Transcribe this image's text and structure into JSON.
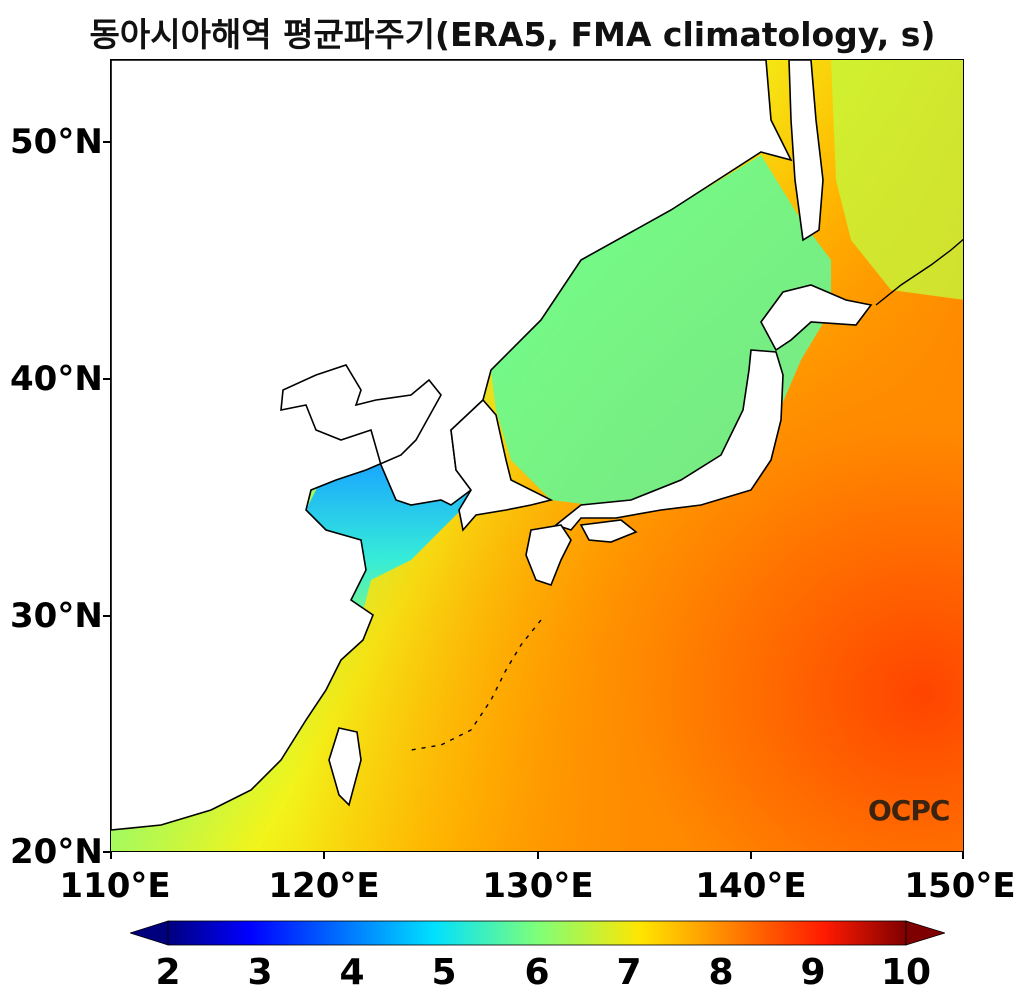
{
  "title": "동아시아해역 평균파주기(ERA5, FMA climatology, s)",
  "map": {
    "lon_range": [
      110,
      150
    ],
    "lat_range": [
      20,
      53.5
    ],
    "lon_ticks": [
      "110°E",
      "120°E",
      "130°E",
      "140°E",
      "150°E"
    ],
    "lat_ticks": [
      "20°N",
      "30°N",
      "40°N",
      "50°N"
    ],
    "land_color": "#ffffff",
    "coastline_color": "#000000"
  },
  "colorbar": {
    "colormap": "jet",
    "ticks": [
      "2",
      "3",
      "4",
      "5",
      "6",
      "7",
      "8",
      "9",
      "10"
    ],
    "min": 2,
    "max": 10,
    "extend": "both"
  },
  "logo": {
    "text": "OCPC",
    "icon": "ocpc-logo"
  }
}
